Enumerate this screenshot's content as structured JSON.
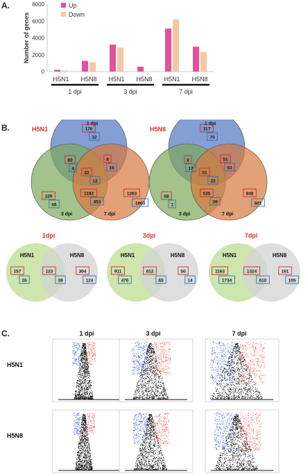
{
  "panelA": {
    "letter": "A.",
    "chart_data": {
      "type": "bar",
      "ylabel": "Number of genes",
      "ylim": [
        0,
        8000
      ],
      "yticks": [
        "0",
        "2000",
        "4000",
        "6000",
        "8000"
      ],
      "ytick_values": [
        0,
        2000,
        4000,
        6000,
        8000
      ],
      "categories": [
        "H5N1",
        "H5N8",
        "H5N1",
        "H5N8",
        "H5N1",
        "H5N8"
      ],
      "groups": [
        "1 dpi",
        "3 dpi",
        "7 dpi"
      ],
      "series": [
        {
          "name": "Up",
          "color": "#e64f9a",
          "values": [
            210,
            1270,
            3200,
            580,
            5100,
            2950
          ]
        },
        {
          "name": "Down",
          "color": "#f7c7a0",
          "values": [
            130,
            1120,
            2850,
            40,
            6200,
            2330
          ]
        }
      ],
      "legend_position": "top-right"
    }
  },
  "panelB": {
    "letter": "B.",
    "triple_venns": [
      {
        "title": "H5N1",
        "labels": {
          "top": "1 dpi",
          "left": "3 dpi",
          "right": "7 dpi"
        },
        "cells": [
          {
            "region": "top-only",
            "up": "170",
            "down": "32"
          },
          {
            "region": "top-left",
            "up": "80",
            "down": "4"
          },
          {
            "region": "top-right",
            "up": "8",
            "down": "16"
          },
          {
            "region": "center",
            "up": "22",
            "down": "12"
          },
          {
            "region": "left-only",
            "up": "229",
            "down": "66"
          },
          {
            "region": "left-right",
            "up": "1192",
            "down": "453"
          },
          {
            "region": "right-only",
            "up": "1263",
            "down": "1863"
          }
        ]
      },
      {
        "title": "H5N8",
        "labels": {
          "top": "1 dpi",
          "left": "3 dpi",
          "right": "7 dpi"
        },
        "cells": [
          {
            "region": "top-only",
            "up": "317",
            "down": "70"
          },
          {
            "region": "top-left",
            "up": "8",
            "down": "17"
          },
          {
            "region": "top-right",
            "up": "51",
            "down": "53"
          },
          {
            "region": "center",
            "up": "51",
            "down": "22"
          },
          {
            "region": "left-only",
            "up": "68",
            "down": "1"
          },
          {
            "region": "left-right",
            "up": "535",
            "down": "39"
          },
          {
            "region": "right-only",
            "up": "848",
            "down": "601"
          }
        ]
      }
    ],
    "dual_venns": [
      {
        "title": "1dpi",
        "left_label": "H5N1",
        "right_label": "H5N8",
        "left": {
          "up": "157",
          "down": "26"
        },
        "both": {
          "up": "123",
          "down": "38"
        },
        "right": {
          "up": "304",
          "down": "124"
        }
      },
      {
        "title": "3dpi",
        "left_label": "H5N1",
        "right_label": "H5N8",
        "left": {
          "up": "911",
          "down": "476"
        },
        "both": {
          "up": "612",
          "down": "65"
        },
        "right": {
          "up": "50",
          "down": "14"
        }
      },
      {
        "title": "7dpi",
        "left_label": "H5N1",
        "right_label": "H5N8",
        "left": {
          "up": "1163",
          "down": "1734"
        },
        "both": {
          "up": "1324",
          "down": "610"
        },
        "right": {
          "up": "161",
          "down": "105"
        }
      }
    ],
    "colors": {
      "blue": "#5b7fc4",
      "green": "#7ea85a",
      "orange": "#d9773f",
      "light_green": "#c5e0a0",
      "grey": "#d3d3d3",
      "up_box": "#cc2a2a",
      "down_box": "#2a6fb5",
      "title_red": "#d9302a"
    }
  },
  "panelC": {
    "letter": "C.",
    "columns": [
      "1 dpi",
      "3 dpi",
      "7 dpi"
    ],
    "rows": [
      "H5N1",
      "H5N8"
    ],
    "spread": [
      [
        0.15,
        0.45,
        0.75
      ],
      [
        0.12,
        0.4,
        0.6
      ]
    ],
    "colors": {
      "up": "#ff5555",
      "down": "#4466dd",
      "ns": "#000000"
    }
  }
}
